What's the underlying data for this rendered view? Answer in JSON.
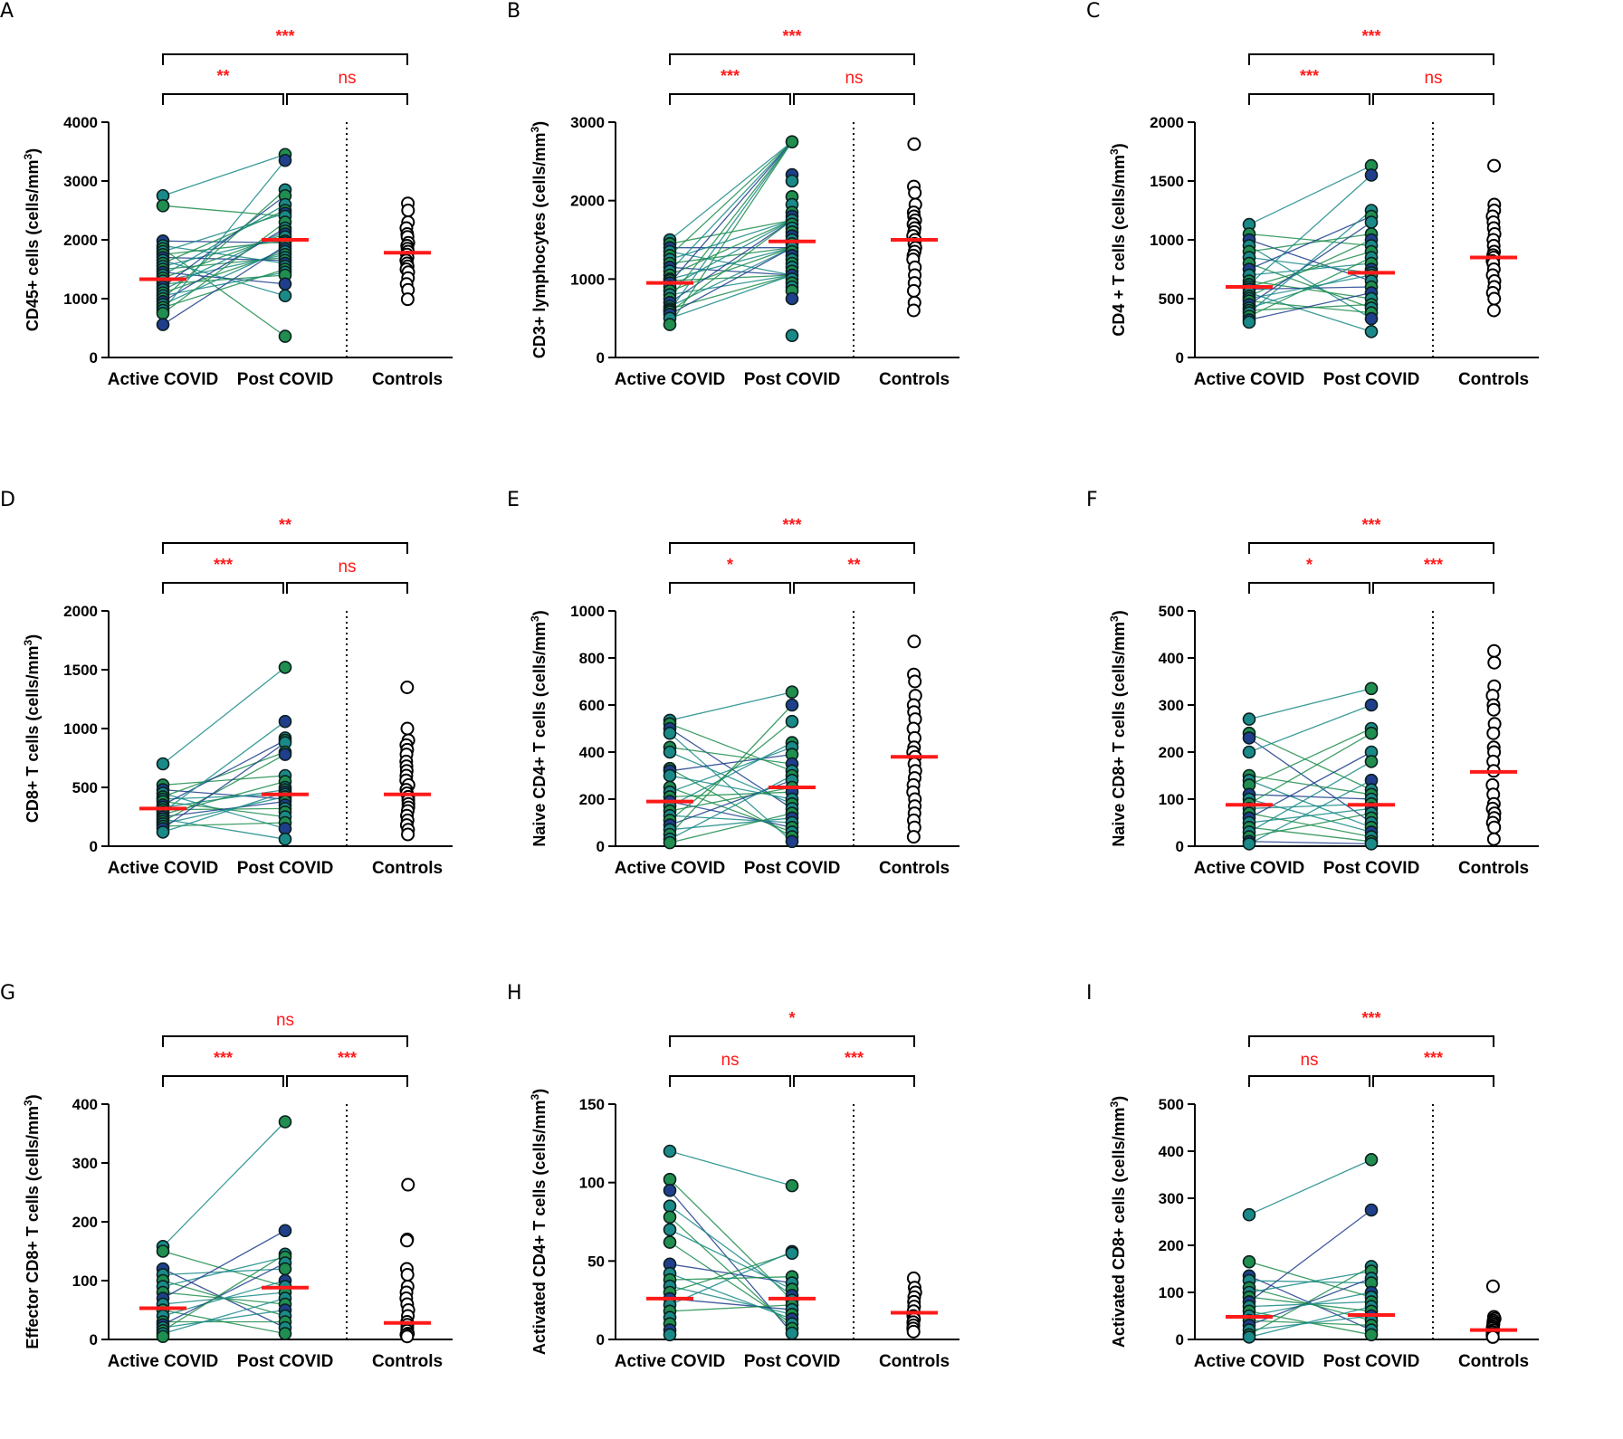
{
  "colors": {
    "accent": "#ff1a1a",
    "sig": "#ff1a1a",
    "axis": "#000000",
    "patient_dark": "#1f3f8c",
    "patient_teal": "#1a8a88",
    "patient_green": "#1f8e4e"
  },
  "chart_data": [
    {
      "panel": "A",
      "type": "scatter",
      "ylabel": "CD45+ cells (cells/mm",
      "ylabel_sup": "3",
      "ylabel_tail": ")",
      "ylim": [
        0,
        4000
      ],
      "yticks": [
        0,
        1000,
        2000,
        3000,
        4000
      ],
      "categories": [
        "Active COVID",
        "Post COVID",
        "Controls"
      ],
      "medians": [
        1330,
        2000,
        1780
      ],
      "active": [
        2750,
        2580,
        1980,
        1900,
        1850,
        1800,
        1750,
        1700,
        1650,
        1600,
        1550,
        1500,
        1450,
        1400,
        1350,
        1300,
        1250,
        1200,
        1150,
        1100,
        1050,
        1000,
        950,
        900,
        850,
        800,
        750,
        560
      ],
      "post": [
        3450,
        3350,
        2850,
        2750,
        2600,
        2500,
        2450,
        2400,
        2300,
        2200,
        2150,
        2100,
        2050,
        1980,
        1950,
        1900,
        1850,
        1800,
        1750,
        1700,
        1650,
        1600,
        1550,
        1500,
        1450,
        1400,
        1250,
        1050,
        360
      ],
      "controls": [
        2620,
        2500,
        2300,
        2200,
        2100,
        2050,
        1950,
        1900,
        1850,
        1800,
        1750,
        1700,
        1650,
        1600,
        1550,
        1500,
        1450,
        1350,
        1250,
        1150,
        990
      ],
      "sig": {
        "top": "***",
        "left": "**",
        "right": "ns"
      }
    },
    {
      "panel": "B",
      "type": "scatter",
      "ylabel": "CD3+ lymphocytes (cells/mm",
      "ylabel_sup": "3",
      "ylabel_tail": ")",
      "ylim": [
        0,
        3000
      ],
      "yticks": [
        0,
        1000,
        2000,
        3000
      ],
      "categories": [
        "Active COVID",
        "Post COVID",
        "Controls"
      ],
      "medians": [
        950,
        1480,
        1500
      ],
      "active": [
        1500,
        1450,
        1400,
        1350,
        1300,
        1250,
        1200,
        1150,
        1100,
        1050,
        1000,
        980,
        950,
        900,
        850,
        800,
        750,
        700,
        650,
        620,
        600,
        580,
        550,
        500,
        420
      ],
      "post": [
        2750,
        2330,
        2250,
        2050,
        1950,
        1850,
        1800,
        1750,
        1700,
        1650,
        1600,
        1550,
        1500,
        1450,
        1400,
        1350,
        1300,
        1250,
        1200,
        1150,
        1100,
        1050,
        1000,
        950,
        900,
        850,
        750,
        280
      ],
      "controls": [
        2720,
        2180,
        2100,
        1950,
        1850,
        1800,
        1750,
        1700,
        1650,
        1600,
        1550,
        1500,
        1450,
        1400,
        1350,
        1300,
        1250,
        1150,
        1050,
        950,
        850,
        700,
        600
      ],
      "sig": {
        "top": "***",
        "left": "***",
        "right": "ns"
      }
    },
    {
      "panel": "C",
      "type": "scatter",
      "ylabel": "CD4 + T cells (cells/mm",
      "ylabel_sup": "3",
      "ylabel_tail": ")",
      "ylim": [
        0,
        2000
      ],
      "yticks": [
        0,
        500,
        1000,
        1500,
        2000
      ],
      "categories": [
        "Active COVID",
        "Post COVID",
        "Controls"
      ],
      "medians": [
        600,
        720,
        850
      ],
      "active": [
        1130,
        1050,
        1000,
        950,
        900,
        850,
        800,
        750,
        700,
        650,
        620,
        600,
        580,
        550,
        520,
        500,
        480,
        450,
        420,
        400,
        380,
        350,
        320,
        300
      ],
      "post": [
        1630,
        1550,
        1250,
        1200,
        1150,
        1050,
        1000,
        950,
        900,
        850,
        800,
        750,
        720,
        700,
        650,
        600,
        550,
        500,
        450,
        420,
        380,
        330,
        220
      ],
      "controls": [
        1630,
        1300,
        1250,
        1200,
        1150,
        1100,
        1050,
        1000,
        950,
        900,
        870,
        850,
        820,
        800,
        750,
        700,
        650,
        600,
        550,
        500,
        400
      ],
      "sig": {
        "top": "***",
        "left": "***",
        "right": "ns"
      }
    },
    {
      "panel": "D",
      "type": "scatter",
      "ylabel": "CD8+ T cells (cells/mm",
      "ylabel_sup": "3",
      "ylabel_tail": ")",
      "ylim": [
        0,
        2000
      ],
      "yticks": [
        0,
        500,
        1000,
        1500,
        2000
      ],
      "categories": [
        "Active COVID",
        "Post COVID",
        "Controls"
      ],
      "medians": [
        320,
        440,
        440
      ],
      "active": [
        700,
        520,
        480,
        450,
        420,
        400,
        380,
        350,
        330,
        310,
        290,
        270,
        250,
        230,
        210,
        190,
        170,
        150,
        120
      ],
      "post": [
        1520,
        1060,
        920,
        900,
        880,
        800,
        780,
        600,
        550,
        500,
        480,
        460,
        440,
        420,
        400,
        380,
        350,
        320,
        290,
        250,
        200,
        150,
        60
      ],
      "controls": [
        1350,
        1000,
        900,
        860,
        820,
        780,
        720,
        680,
        640,
        600,
        560,
        520,
        480,
        450,
        420,
        390,
        360,
        330,
        300,
        260,
        220,
        180,
        140,
        100
      ],
      "sig": {
        "top": "**",
        "left": "***",
        "right": "ns"
      }
    },
    {
      "panel": "E",
      "type": "scatter",
      "ylabel": "Naive CD4+ T cells (cells/mm",
      "ylabel_sup": "3",
      "ylabel_tail": ")",
      "ylim": [
        0,
        1000
      ],
      "yticks": [
        0,
        200,
        400,
        600,
        800,
        1000
      ],
      "categories": [
        "Active COVID",
        "Post COVID",
        "Controls"
      ],
      "medians": [
        190,
        250,
        380
      ],
      "active": [
        535,
        520,
        500,
        480,
        420,
        400,
        330,
        320,
        300,
        250,
        230,
        210,
        190,
        170,
        150,
        130,
        110,
        90,
        70,
        50,
        30,
        15
      ],
      "post": [
        655,
        600,
        530,
        440,
        420,
        390,
        350,
        320,
        300,
        280,
        250,
        230,
        200,
        180,
        160,
        140,
        120,
        100,
        80,
        60,
        40,
        20
      ],
      "controls": [
        870,
        730,
        700,
        640,
        600,
        570,
        540,
        500,
        460,
        420,
        400,
        380,
        350,
        320,
        290,
        260,
        230,
        200,
        170,
        140,
        110,
        80,
        40
      ],
      "sig": {
        "top": "***",
        "left": "*",
        "right": "**"
      }
    },
    {
      "panel": "F",
      "type": "scatter",
      "ylabel": "Naive CD8+ T cells (cells/mm",
      "ylabel_sup": "3",
      "ylabel_tail": ")",
      "ylim": [
        0,
        500
      ],
      "yticks": [
        0,
        100,
        200,
        300,
        400,
        500
      ],
      "categories": [
        "Active COVID",
        "Post COVID",
        "Controls"
      ],
      "medians": [
        88,
        88,
        158
      ],
      "active": [
        270,
        240,
        230,
        200,
        150,
        140,
        130,
        110,
        100,
        90,
        80,
        70,
        60,
        50,
        40,
        30,
        20,
        10,
        5
      ],
      "post": [
        335,
        300,
        250,
        240,
        200,
        180,
        140,
        120,
        110,
        100,
        90,
        80,
        70,
        60,
        50,
        40,
        30,
        20,
        10,
        5
      ],
      "controls": [
        415,
        390,
        340,
        320,
        300,
        290,
        260,
        240,
        210,
        200,
        180,
        160,
        130,
        110,
        90,
        80,
        70,
        60,
        50,
        40,
        15
      ],
      "sig": {
        "top": "***",
        "left": "*",
        "right": "***"
      }
    },
    {
      "panel": "G",
      "type": "scatter",
      "ylabel": "Effector CD8+ T cells (cells/mm",
      "ylabel_sup": "3",
      "ylabel_tail": ")",
      "ylim": [
        0,
        400
      ],
      "yticks": [
        0,
        100,
        200,
        300,
        400
      ],
      "categories": [
        "Active COVID",
        "Post COVID",
        "Controls"
      ],
      "medians": [
        53,
        88,
        28
      ],
      "active": [
        158,
        150,
        120,
        110,
        100,
        90,
        80,
        70,
        60,
        50,
        40,
        30,
        25,
        20,
        15,
        10,
        5
      ],
      "post": [
        370,
        185,
        145,
        140,
        130,
        120,
        100,
        90,
        80,
        70,
        60,
        50,
        40,
        30,
        20,
        10
      ],
      "controls": [
        263,
        170,
        168,
        120,
        110,
        90,
        80,
        70,
        60,
        50,
        40,
        30,
        25,
        20,
        15,
        10,
        8,
        5
      ],
      "sig": {
        "top": "ns",
        "left": "***",
        "right": "***"
      }
    },
    {
      "panel": "H",
      "type": "scatter",
      "ylabel": "Activated CD4+ T cells (cells/mm",
      "ylabel_sup": "3",
      "ylabel_tail": ")",
      "ylim": [
        0,
        150
      ],
      "yticks": [
        0,
        50,
        100,
        150
      ],
      "categories": [
        "Active COVID",
        "Post COVID",
        "Controls"
      ],
      "medians": [
        26,
        26,
        17
      ],
      "active": [
        120,
        102,
        95,
        85,
        78,
        70,
        62,
        48,
        42,
        38,
        34,
        30,
        26,
        22,
        18,
        14,
        10,
        6,
        3
      ],
      "post": [
        98,
        56,
        55,
        40,
        36,
        32,
        28,
        25,
        22,
        19,
        16,
        13,
        10,
        7,
        4
      ],
      "controls": [
        39,
        33,
        30,
        27,
        24,
        21,
        18,
        15,
        13,
        11,
        9,
        7,
        5
      ],
      "sig": {
        "top": "*",
        "left": "ns",
        "right": "***"
      }
    },
    {
      "panel": "I",
      "type": "scatter",
      "ylabel": "Activated CD8+ cells (cells/mm",
      "ylabel_sup": "3",
      "ylabel_tail": ")",
      "ylim": [
        0,
        500
      ],
      "yticks": [
        0,
        100,
        200,
        300,
        400,
        500
      ],
      "categories": [
        "Active COVID",
        "Post COVID",
        "Controls"
      ],
      "medians": [
        48,
        52,
        20
      ],
      "active": [
        265,
        165,
        135,
        125,
        110,
        100,
        90,
        80,
        70,
        60,
        50,
        40,
        30,
        20,
        10,
        5
      ],
      "post": [
        382,
        275,
        155,
        145,
        130,
        120,
        100,
        90,
        80,
        70,
        60,
        50,
        40,
        30,
        20,
        10
      ],
      "controls": [
        113,
        48,
        44,
        40,
        36,
        32,
        28,
        24,
        20,
        16,
        12,
        8,
        5
      ],
      "sig": {
        "top": "***",
        "left": "ns",
        "right": "***"
      }
    }
  ]
}
